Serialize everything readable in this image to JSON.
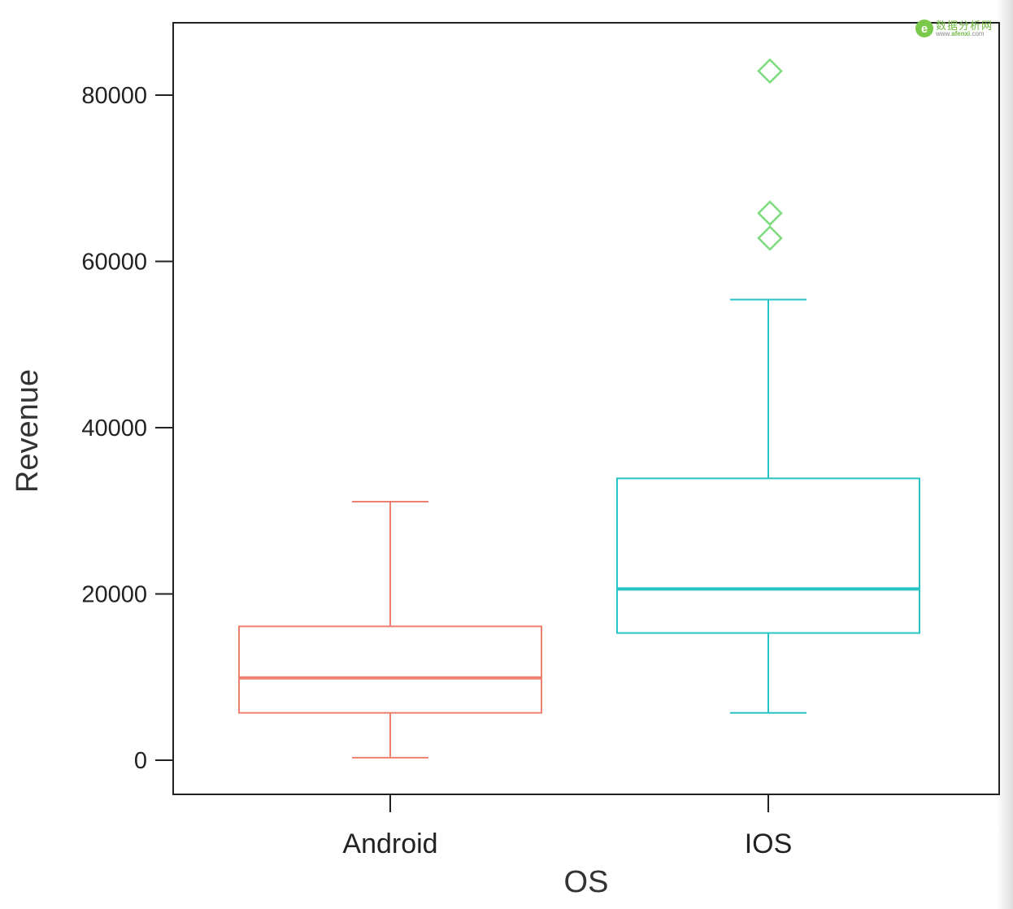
{
  "chart_data": {
    "type": "boxplot",
    "xlabel": "OS",
    "ylabel": "Revenue",
    "ylim": [
      -4000,
      88000
    ],
    "yticks": [
      0,
      20000,
      40000,
      60000,
      80000
    ],
    "grid": false,
    "categories": [
      "Android",
      "IOS"
    ],
    "boxes": [
      {
        "category": "Android",
        "color": "#f08070",
        "whisker_low": 300,
        "q1": 5700,
        "median": 9900,
        "q3": 16100,
        "whisker_high": 31100,
        "outliers": []
      },
      {
        "category": "IOS",
        "color": "#26c4c4",
        "whisker_low": 5700,
        "q1": 15300,
        "median": 20600,
        "q3": 33900,
        "whisker_high": 55400,
        "outliers": [
          62800,
          65800,
          82900
        ],
        "outlier_color": "#7ddc7d"
      }
    ]
  },
  "watermark": {
    "logo_text": "e",
    "name": "数据分析网",
    "url_prefix": "www.",
    "url_brand": "afenxi",
    "url_suffix": ".com"
  }
}
